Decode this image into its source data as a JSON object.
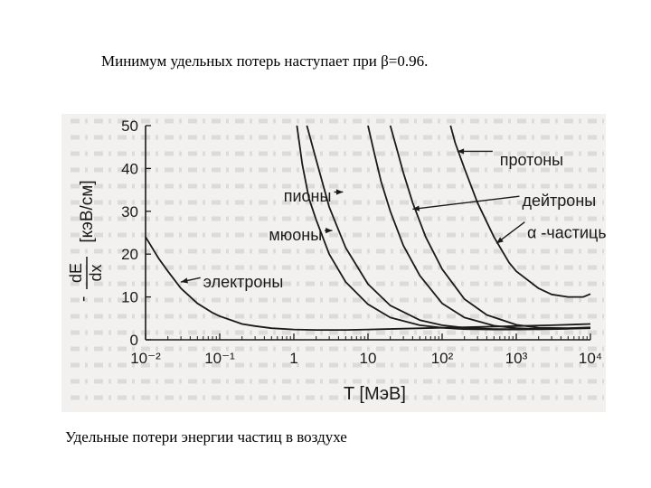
{
  "heading": "Минимум удельных потерь наступает при β=0.96.",
  "caption": "Удельные потери энергии частиц в воздухе",
  "colors": {
    "paper": "#f2f1ef",
    "ink": "#1a1a1a",
    "ghost_text": "#cfcfcf"
  },
  "chart_data": {
    "type": "line",
    "title": "",
    "xlabel": "T [МэВ]",
    "ylabel_fraction_num": "dE",
    "ylabel_fraction_den": "dx",
    "ylabel_prefix": "-",
    "ylabel_unit": "[кэВ/см]",
    "x_scale": "log",
    "xlim": [
      0.01,
      10000
    ],
    "ylim": [
      0,
      50
    ],
    "x_tick_labels": [
      "10⁻²",
      "10⁻¹",
      "1",
      "10",
      "10²",
      "10³",
      "10⁴"
    ],
    "y_ticks": [
      0,
      10,
      20,
      30,
      40,
      50
    ],
    "grid": false,
    "legend": "inline labels with arrows",
    "series": [
      {
        "name": "электроны",
        "x": [
          0.01,
          0.015,
          0.02,
          0.03,
          0.05,
          0.08,
          0.1,
          0.2,
          0.3,
          0.5,
          1,
          2,
          5,
          10,
          30,
          100,
          300,
          1000,
          3000,
          10000
        ],
        "y": [
          24,
          19,
          16,
          12,
          8.5,
          6.3,
          5.5,
          3.7,
          3.2,
          2.7,
          2.4,
          2.3,
          2.3,
          2.4,
          2.6,
          2.8,
          3.0,
          3.2,
          3.4,
          3.7
        ]
      },
      {
        "name": "мюоны",
        "x": [
          1.1,
          1.3,
          1.6,
          2,
          3,
          5,
          10,
          20,
          50,
          100,
          200,
          500,
          1000,
          3000,
          10000
        ],
        "y": [
          50,
          41,
          33,
          28,
          20,
          13.5,
          8.3,
          5.2,
          3.4,
          2.8,
          2.5,
          2.4,
          2.4,
          2.5,
          2.7
        ]
      },
      {
        "name": "пионы",
        "x": [
          1.5,
          2,
          3,
          5,
          10,
          20,
          50,
          100,
          200,
          500,
          1000,
          3000,
          10000
        ],
        "y": [
          50,
          42,
          31,
          21.5,
          13,
          8,
          4.6,
          3.4,
          2.8,
          2.5,
          2.5,
          2.6,
          2.8
        ]
      },
      {
        "name": "протоны",
        "x": [
          10,
          12,
          15,
          20,
          30,
          50,
          100,
          200,
          500,
          1000,
          2000,
          5000,
          10000
        ],
        "y": [
          50,
          44,
          37,
          30,
          22,
          15,
          8.5,
          5.2,
          3.3,
          2.7,
          2.5,
          2.6,
          2.8
        ]
      },
      {
        "name": "дейтроны",
        "x": [
          20,
          25,
          30,
          40,
          60,
          100,
          200,
          400,
          1000,
          2000,
          5000,
          10000
        ],
        "y": [
          50,
          44,
          39,
          32,
          24,
          16.5,
          9.5,
          5.8,
          3.5,
          2.8,
          2.7,
          2.9
        ]
      },
      {
        "name": "α -частицы",
        "x": [
          130,
          150,
          200,
          300,
          500,
          800,
          1000,
          2000,
          3000,
          5000,
          8000,
          10000
        ],
        "y": [
          50,
          46,
          40,
          32,
          24,
          18,
          16,
          12,
          10.6,
          10,
          10,
          10.7
        ]
      }
    ],
    "labels": [
      {
        "text": "протоны",
        "series": "протоны"
      },
      {
        "text": "пионы",
        "series": "пионы"
      },
      {
        "text": "дейтроны",
        "series": "дейтроны"
      },
      {
        "text": "мюоны",
        "series": "мюоны"
      },
      {
        "text": "α -частицы",
        "series": "α -частицы"
      },
      {
        "text": "электроны",
        "series": "электроны"
      }
    ]
  }
}
